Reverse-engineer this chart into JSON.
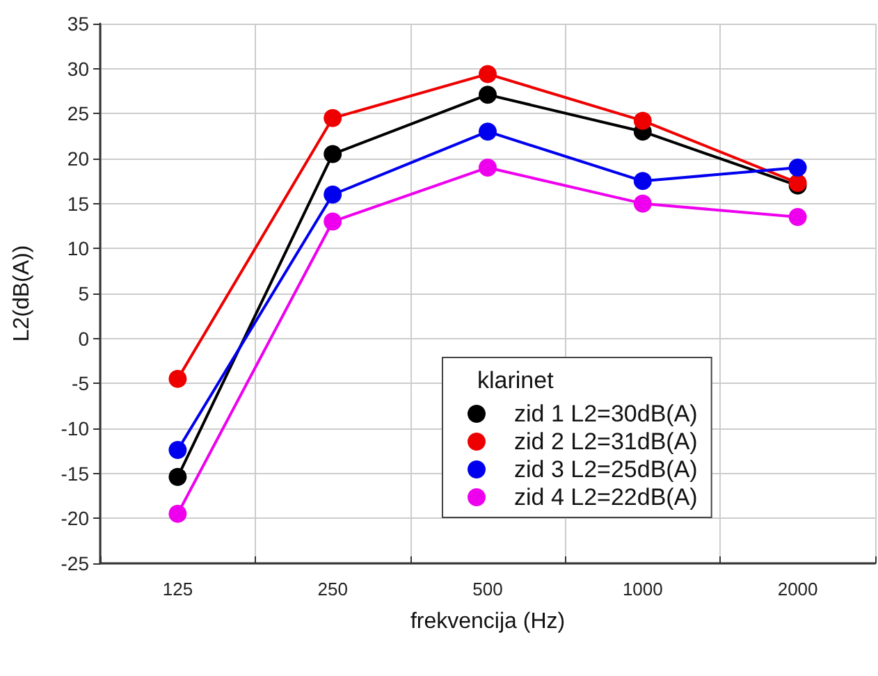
{
  "chart_data": {
    "type": "line",
    "xlabel": "frekvencija (Hz)",
    "ylabel": "L2(dB(A))",
    "legend_title": "klarinet",
    "categories": [
      "125",
      "250",
      "500",
      "1000",
      "2000"
    ],
    "ylim": [
      -25,
      35
    ],
    "yticks": [
      -25,
      -20,
      -15,
      -10,
      -5,
      0,
      5,
      10,
      15,
      20,
      25,
      30,
      35
    ],
    "series": [
      {
        "name": "zid 1 L2=30dB(A)",
        "color": "#000000",
        "values": [
          -15.4,
          20.5,
          27.1,
          23,
          17
        ]
      },
      {
        "name": "zid 2 L2=31dB(A)",
        "color": "#ee0000",
        "values": [
          -4.5,
          24.5,
          29.4,
          24.2,
          17.3
        ]
      },
      {
        "name": "zid 3 L2=25dB(A)",
        "color": "#0000ee",
        "values": [
          -12.4,
          16,
          23,
          17.5,
          19
        ]
      },
      {
        "name": "zid 4 L2=22dB(A)",
        "color": "#ee00ee",
        "values": [
          -19.5,
          13,
          19,
          15,
          13.5
        ]
      }
    ],
    "grid": true,
    "legend": "bottom right",
    "marker": "circle",
    "line_style": "solid"
  }
}
